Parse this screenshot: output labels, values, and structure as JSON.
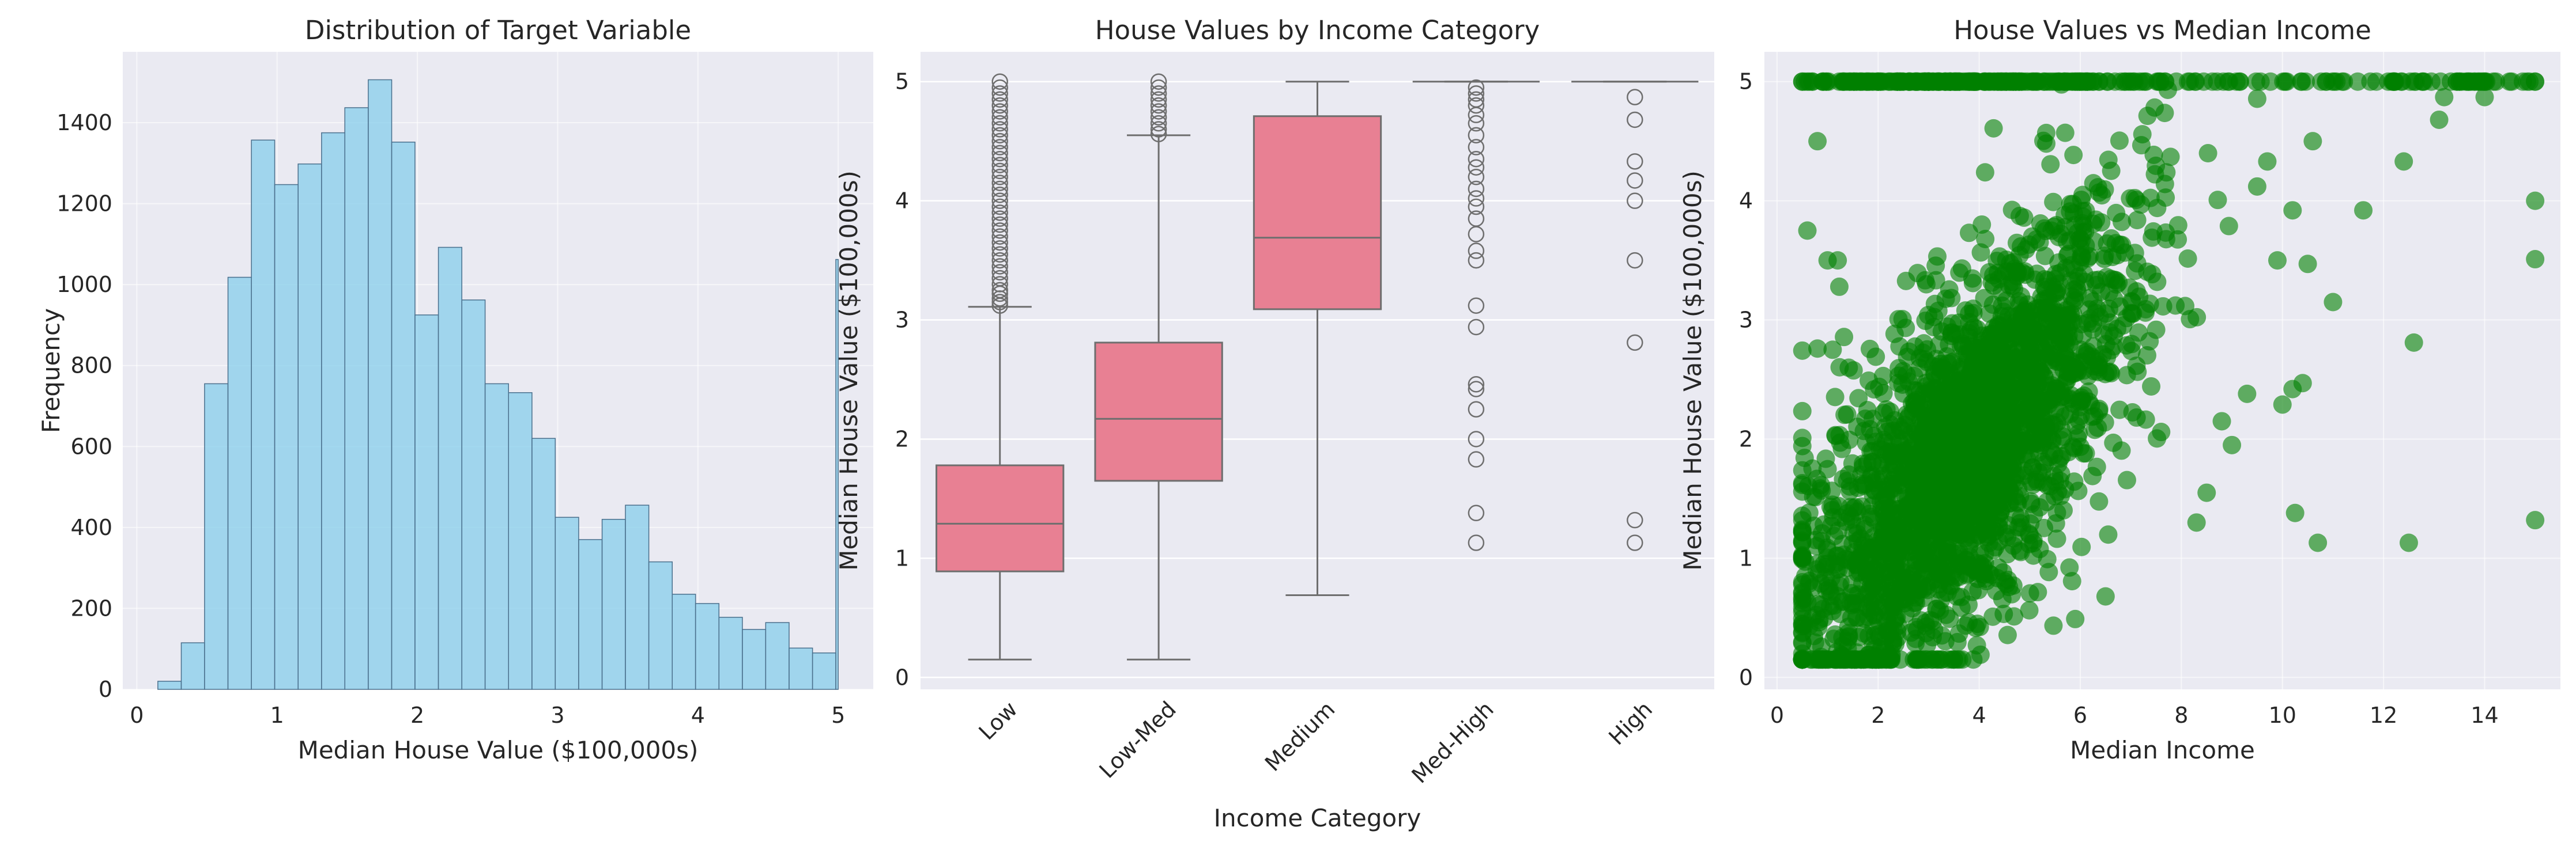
{
  "colors": {
    "axes_bg": "#EAEAF2",
    "grid": "#FFFFFF",
    "hist_fill": "#87CEEB",
    "hist_edge": "#4A6F8C",
    "box_fill": "#E88093",
    "box_line": "#6E6E6E",
    "scatter": "#008000",
    "text": "#262626"
  },
  "chart_data": [
    {
      "type": "bar",
      "subtype": "histogram",
      "title": "Distribution of Target Variable",
      "xlabel": "Median House Value ($100,000s)",
      "ylabel": "Frequency",
      "xlim": [
        -0.1,
        5.25
      ],
      "ylim": [
        0,
        1575
      ],
      "xticks": [
        0,
        1,
        2,
        3,
        4,
        5
      ],
      "yticks": [
        0,
        200,
        400,
        600,
        800,
        1000,
        1200,
        1400
      ],
      "bin_edges": [
        0.15,
        0.317,
        0.483,
        0.65,
        0.817,
        0.983,
        1.15,
        1.317,
        1.483,
        1.65,
        1.817,
        1.983,
        2.15,
        2.317,
        2.483,
        2.65,
        2.817,
        2.983,
        3.15,
        3.317,
        3.483,
        3.65,
        3.817,
        3.983,
        4.15,
        4.317,
        4.483,
        4.65,
        4.817,
        4.983,
        5.0
      ],
      "counts": [
        20,
        115,
        755,
        1018,
        1357,
        1247,
        1298,
        1375,
        1437,
        1506,
        1352,
        925,
        1092,
        962,
        755,
        733,
        620,
        425,
        370,
        420,
        455,
        315,
        235,
        212,
        178,
        148,
        165,
        102,
        90,
        1062
      ],
      "grid": true
    },
    {
      "type": "box",
      "title": "House Values by Income Category",
      "xlabel": "Income Category",
      "ylabel": "Median House Value ($100,000s)",
      "categories": [
        "Low",
        "Low-Med",
        "Medium",
        "Med-High",
        "High"
      ],
      "ylim": [
        -0.1,
        5.25
      ],
      "yticks": [
        0,
        1,
        2,
        3,
        4,
        5
      ],
      "boxes": [
        {
          "whislo": 0.15,
          "q1": 0.89,
          "med": 1.29,
          "q3": 1.78,
          "whishi": 3.11
        },
        {
          "whislo": 0.15,
          "q1": 1.65,
          "med": 2.17,
          "q3": 2.81,
          "whishi": 4.55
        },
        {
          "whislo": 0.69,
          "q1": 3.09,
          "med": 3.69,
          "q3": 4.71,
          "whishi": 5.0
        },
        {
          "whislo": 5.0,
          "q1": 5.0,
          "med": 5.0,
          "q3": 5.0,
          "whishi": 5.0
        },
        {
          "whislo": 5.0,
          "q1": 5.0,
          "med": 5.0,
          "q3": 5.0,
          "whishi": 5.0
        }
      ],
      "fliers": [
        [
          3.12,
          3.15,
          3.18,
          3.22,
          3.25,
          3.3,
          3.35,
          3.4,
          3.45,
          3.5,
          3.55,
          3.6,
          3.65,
          3.7,
          3.75,
          3.8,
          3.85,
          3.9,
          3.95,
          4.0,
          4.05,
          4.1,
          4.15,
          4.2,
          4.25,
          4.3,
          4.35,
          4.4,
          4.45,
          4.5,
          4.55,
          4.6,
          4.65,
          4.7,
          4.75,
          4.8,
          4.85,
          4.9,
          4.95,
          5.0
        ],
        [
          4.56,
          4.6,
          4.65,
          4.7,
          4.75,
          4.8,
          4.85,
          4.9,
          4.95,
          5.0
        ],
        [],
        [
          4.95,
          4.9,
          4.85,
          4.8,
          4.72,
          4.65,
          4.55,
          4.45,
          4.35,
          4.28,
          4.2,
          4.1,
          4.02,
          3.95,
          3.85,
          3.72,
          3.58,
          3.5,
          3.12,
          2.94,
          2.46,
          2.42,
          2.25,
          2.0,
          1.83,
          1.38,
          1.13
        ],
        [
          4.87,
          4.68,
          4.33,
          4.17,
          4.0,
          3.5,
          2.81,
          1.32,
          1.13
        ]
      ],
      "grid": true
    },
    {
      "type": "scatter",
      "title": "House Values vs Median Income",
      "xlabel": "Median Income",
      "ylabel": "Median House Value ($100,000s)",
      "xlim": [
        -0.25,
        15.5
      ],
      "ylim": [
        -0.1,
        5.25
      ],
      "xticks": [
        0,
        2,
        4,
        6,
        8,
        10,
        12,
        14
      ],
      "yticks": [
        0,
        1,
        2,
        3,
        4,
        5
      ],
      "x": [
        15.0,
        15.0,
        15.0,
        15.0,
        12.6,
        12.5,
        12.4,
        13.1,
        13.2,
        11.6,
        10.4,
        10.2,
        10.25,
        10.7,
        10.5,
        10.6,
        9.7,
        9.5,
        9.9,
        10.2,
        10.0,
        9.3,
        9.0,
        8.8,
        8.5,
        8.3,
        7.6,
        6.5,
        5.9,
        4.2,
        3.5,
        11.0,
        14.0,
        13.8,
        13.5,
        12.8,
        0.5,
        0.7,
        0.9,
        1.0,
        1.2,
        0.5,
        0.6,
        0.8,
        1.1,
        1.3,
        0.6,
        0.8,
        0.5,
        0.7
      ],
      "y": [
        4.0,
        3.51,
        1.32,
        5.0,
        2.81,
        1.13,
        4.33,
        4.68,
        4.87,
        3.92,
        2.47,
        2.42,
        1.38,
        1.13,
        3.47,
        4.5,
        4.33,
        4.12,
        3.5,
        3.92,
        2.29,
        2.38,
        1.95,
        2.15,
        1.55,
        1.3,
        2.06,
        0.68,
        0.49,
        0.87,
        0.15,
        3.15,
        4.87,
        5.0,
        5.0,
        5.0,
        5.0,
        5.0,
        5.0,
        3.5,
        3.5,
        1.63,
        0.63,
        4.5,
        2.75,
        1.12,
        3.75,
        2.76,
        1.0,
        0.5
      ],
      "density_note": "dense cloud from x 0.5-8 with y ranging 0.15-5.0; cap at y=5.0",
      "grid": true
    }
  ]
}
